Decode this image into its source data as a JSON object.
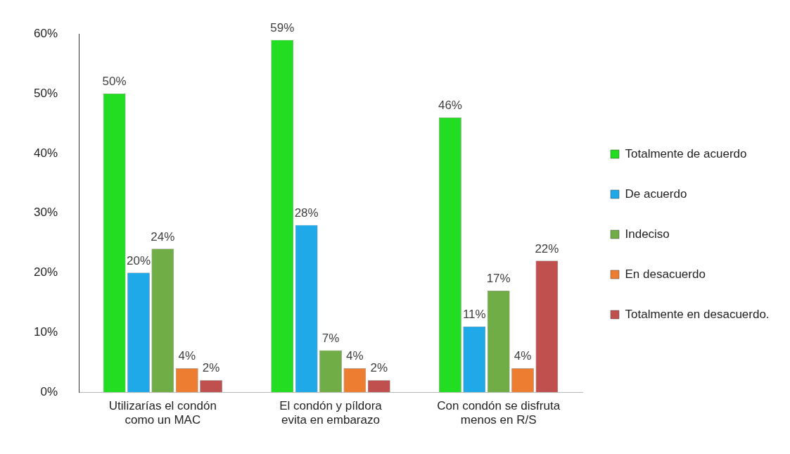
{
  "chart_data": {
    "type": "bar",
    "categories": [
      "Utilizarías el condón como un MAC",
      "El condón y píldora evita en embarazo",
      "Con condón se disfruta menos en R/S"
    ],
    "series": [
      {
        "name": "Totalmente de acuerdo",
        "color": "#22dd22",
        "values": [
          50,
          59,
          46
        ],
        "value_labels": [
          "50%",
          "59%",
          "46%"
        ]
      },
      {
        "name": "De acuerdo",
        "color": "#1fa9e8",
        "values": [
          20,
          28,
          11
        ],
        "value_labels": [
          "20%",
          "28%",
          "11%"
        ]
      },
      {
        "name": "Indeciso",
        "color": "#70ad47",
        "values": [
          24,
          7,
          17
        ],
        "value_labels": [
          "24%",
          "7%",
          "17%"
        ]
      },
      {
        "name": "En desacuerdo",
        "color": "#ed7d31",
        "values": [
          4,
          4,
          4
        ],
        "value_labels": [
          "4%",
          "4%",
          "4%"
        ]
      },
      {
        "name": "Totalmente en desacuerdo.",
        "color": "#c0504d",
        "values": [
          2,
          2,
          22
        ],
        "value_labels": [
          "2%",
          "2%",
          "22%"
        ]
      }
    ],
    "ylim": [
      0,
      60
    ],
    "yticks": [
      {
        "value": 0,
        "label": "0%"
      },
      {
        "value": 10,
        "label": "10%"
      },
      {
        "value": 20,
        "label": "20%"
      },
      {
        "value": 30,
        "label": "30%"
      },
      {
        "value": 40,
        "label": "40%"
      },
      {
        "value": 50,
        "label": "50%"
      },
      {
        "value": 60,
        "label": "60%"
      }
    ],
    "grid": false,
    "legend": "right"
  }
}
